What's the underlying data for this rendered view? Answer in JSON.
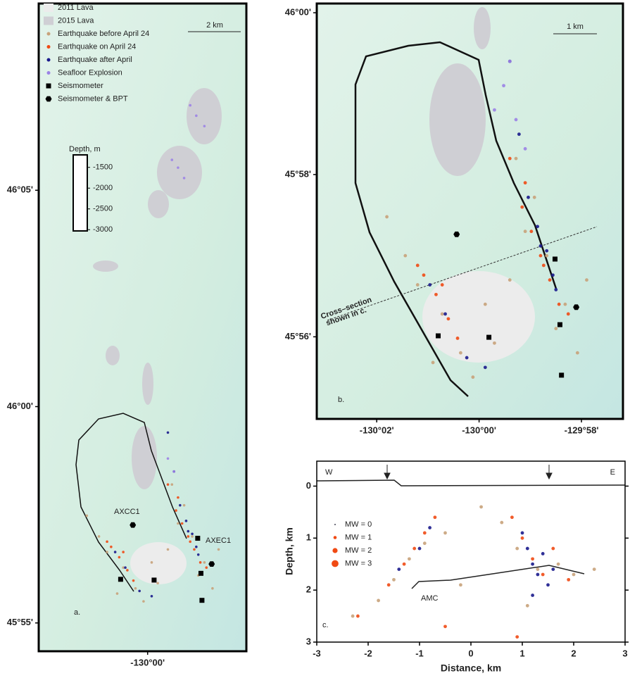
{
  "chart_data": [
    {
      "type": "map",
      "xlim": [
        -130.0537,
        -129.9513
      ],
      "ylim": [
        45.9058,
        46.1552
      ],
      "xticks": [
        {
          "value": -130,
          "label": "-130°00'"
        }
      ],
      "yticks": [
        {
          "value": 46.0833,
          "label": "46°05'"
        },
        {
          "value": 46,
          "label": "46°00'"
        },
        {
          "value": 45.9167,
          "label": "45°55'"
        }
      ],
      "legend": [
        {
          "label": "2011 Lava",
          "color": "#ececec",
          "marker": "patch"
        },
        {
          "label": "2015 Lava",
          "color": "#cfcfd4",
          "marker": "patch"
        },
        {
          "label": "Earthquake before April 24",
          "color": "#c8a27a",
          "marker": "circle"
        },
        {
          "label": "Earthquake on April 24",
          "color": "#f04a14",
          "marker": "circle"
        },
        {
          "label": "Earthquake after April",
          "color": "#1a1a8c",
          "marker": "circle"
        },
        {
          "label": "Seafloor Explosion",
          "color": "#9b82e6",
          "marker": "circle"
        },
        {
          "label": "Seismometer",
          "color": "#000000",
          "marker": "square"
        },
        {
          "label": "Seismometer & BPT",
          "color": "#000000",
          "marker": "hexagon"
        }
      ],
      "scale_label": "2 km",
      "depth_title": "Depth, m",
      "depth_lim": [
        -1200,
        -3030
      ],
      "depth_ticks": [
        -1500,
        -2000,
        -2500,
        -3000
      ],
      "station_labels": [
        "AXCC1",
        "AXEC1"
      ],
      "panel_label": "a.",
      "series": [
        {
          "color": "#c8a27a",
          "marker": "circle",
          "x": [
            -130.02,
            -130.012,
            -130.006,
            -129.998,
            -129.99,
            -129.985,
            -129.978,
            -129.972,
            -129.968,
            -130.024,
            -130.015,
            -129.995,
            -129.982,
            -129.975,
            -130.03,
            -129.965,
            -130.002,
            -129.988
          ],
          "values": [
            45.944,
            45.938,
            45.93,
            45.94,
            45.945,
            45.955,
            45.95,
            45.94,
            45.93,
            45.95,
            45.928,
            45.932,
            45.962,
            45.935,
            45.958,
            45.945,
            45.925,
            45.97
          ]
        },
        {
          "color": "#f04a14",
          "marker": "circle",
          "x": [
            -130.018,
            -130.014,
            -130.01,
            -130.007,
            -130.02,
            -129.986,
            -129.983,
            -129.98,
            -129.977,
            -129.974,
            -129.979,
            -129.985,
            -129.971,
            -130.012,
            -129.99
          ],
          "values": [
            45.946,
            45.942,
            45.937,
            45.933,
            45.948,
            45.96,
            45.955,
            45.95,
            45.945,
            45.94,
            45.948,
            45.965,
            45.938,
            45.944,
            45.97
          ]
        },
        {
          "color": "#1a1a8c",
          "marker": "circle",
          "x": [
            -129.984,
            -129.981,
            -129.978,
            -129.976,
            -129.98,
            -129.987,
            -130.016,
            -130.011,
            -130.004,
            -129.998,
            -129.99,
            -129.975
          ],
          "values": [
            45.962,
            45.956,
            45.951,
            45.946,
            45.952,
            45.975,
            45.944,
            45.938,
            45.929,
            45.927,
            45.99,
            45.943
          ]
        },
        {
          "color": "#9b82e6",
          "marker": "circle",
          "x": [
            -129.976,
            -129.972,
            -129.979,
            -129.985,
            -129.982,
            -129.988,
            -129.99,
            -129.987
          ],
          "values": [
            46.112,
            46.108,
            46.116,
            46.092,
            46.088,
            46.095,
            45.98,
            45.975
          ]
        },
        {
          "color": "#000000",
          "marker": "square",
          "x": [
            -130.0133,
            -129.9968,
            -129.9753,
            -129.9737,
            -129.9732
          ],
          "values": [
            45.9335,
            45.9332,
            45.9493,
            45.9358,
            45.9254
          ]
        },
        {
          "color": "#000000",
          "marker": "hexagon",
          "x": [
            -130.0073,
            -129.9684
          ],
          "values": [
            45.9544,
            45.9394
          ]
        }
      ]
    },
    {
      "type": "map",
      "xlim": [
        -130.0528,
        -129.9532
      ],
      "ylim": [
        45.9164,
        46.0019
      ],
      "xticks": [
        {
          "value": -130.0333,
          "label": "-130°02'"
        },
        {
          "value": -130,
          "label": "-130°00'"
        },
        {
          "value": -129.9667,
          "label": "-129°58'"
        }
      ],
      "yticks": [
        {
          "value": 46,
          "label": "46°00'"
        },
        {
          "value": 45.9667,
          "label": "45°58'"
        },
        {
          "value": 45.9333,
          "label": "45°56'"
        }
      ],
      "scale_label": "1 km",
      "panel_label": "b.",
      "cross_section_label": [
        "Cross–section",
        "shown in c."
      ],
      "series": [
        {
          "color": "#c8a27a",
          "marker": "circle",
          "x": [
            -130.02,
            -130.012,
            -130.006,
            -129.998,
            -129.99,
            -129.985,
            -129.978,
            -129.972,
            -129.968,
            -130.024,
            -130.015,
            -129.995,
            -129.982,
            -129.975,
            -130.03,
            -129.965,
            -130.002,
            -129.988
          ],
          "values": [
            45.944,
            45.938,
            45.93,
            45.94,
            45.945,
            45.955,
            45.95,
            45.94,
            45.93,
            45.95,
            45.928,
            45.932,
            45.962,
            45.935,
            45.958,
            45.945,
            45.925,
            45.97
          ]
        },
        {
          "color": "#f04a14",
          "marker": "circle",
          "x": [
            -130.018,
            -130.014,
            -130.01,
            -130.007,
            -130.02,
            -129.986,
            -129.983,
            -129.98,
            -129.977,
            -129.974,
            -129.979,
            -129.985,
            -129.971,
            -130.012,
            -129.99
          ],
          "values": [
            45.946,
            45.942,
            45.937,
            45.933,
            45.948,
            45.96,
            45.955,
            45.95,
            45.945,
            45.94,
            45.948,
            45.965,
            45.938,
            45.944,
            45.97
          ]
        },
        {
          "color": "#1a1a8c",
          "marker": "circle",
          "x": [
            -129.984,
            -129.981,
            -129.978,
            -129.976,
            -129.98,
            -129.987,
            -130.016,
            -130.011,
            -130.004,
            -129.998,
            -129.99,
            -129.975
          ],
          "values": [
            45.962,
            45.956,
            45.951,
            45.946,
            45.952,
            45.975,
            45.944,
            45.938,
            45.929,
            45.927,
            45.99,
            45.943
          ]
        },
        {
          "color": "#9b82e6",
          "marker": "circle",
          "x": [
            -129.992,
            -129.988,
            -129.985,
            -129.99,
            -129.995
          ],
          "values": [
            45.985,
            45.978,
            45.972,
            45.99,
            45.98
          ]
        },
        {
          "color": "#000000",
          "marker": "square",
          "x": [
            -130.0133,
            -129.9968,
            -129.9753,
            -129.9737,
            -129.9732
          ],
          "values": [
            45.9335,
            45.9332,
            45.9493,
            45.9358,
            45.9254
          ]
        },
        {
          "color": "#000000",
          "marker": "hexagon",
          "x": [
            -130.0073,
            -129.9684
          ],
          "values": [
            45.9544,
            45.9394
          ]
        }
      ]
    },
    {
      "type": "scatter",
      "x_label": "Distance, km",
      "y_label": "Depth, km",
      "xlim": [
        -3,
        3
      ],
      "ylim": [
        3,
        -0.48
      ],
      "xticks": [
        -3,
        -2,
        -1,
        0,
        1,
        2,
        3
      ],
      "yticks": [
        0,
        1,
        2,
        3
      ],
      "west_label": "W",
      "east_label": "E",
      "amc_label": "AMC",
      "panel_label": "c.",
      "size_legend": [
        "MW = 0",
        "MW = 1",
        "MW = 2",
        "MW = 3"
      ],
      "series": [
        {
          "color": "#c8a27a",
          "x": [
            -1.8,
            -1.5,
            -1.2,
            -0.9,
            -0.5,
            0.2,
            0.6,
            0.9,
            1.3,
            1.7,
            2.0,
            2.4,
            -2.3,
            1.1,
            -0.2
          ],
          "values": [
            2.2,
            1.8,
            1.4,
            1.1,
            0.9,
            0.4,
            0.7,
            1.2,
            1.6,
            1.5,
            1.7,
            1.6,
            2.5,
            2.3,
            1.9
          ]
        },
        {
          "color": "#f04a14",
          "x": [
            -1.6,
            -1.3,
            -1.1,
            -0.9,
            -0.7,
            0.8,
            1.0,
            1.2,
            1.4,
            1.6,
            1.9,
            -2.2,
            -0.5,
            0.9
          ],
          "values": [
            1.9,
            1.5,
            1.2,
            0.9,
            0.6,
            0.6,
            1.0,
            1.4,
            1.7,
            1.2,
            1.8,
            2.5,
            2.7,
            2.9
          ]
        },
        {
          "color": "#1a1a8c",
          "x": [
            -1.4,
            -1.0,
            -0.8,
            1.0,
            1.1,
            1.2,
            1.3,
            1.4,
            1.6,
            1.5,
            1.2
          ],
          "values": [
            1.6,
            1.2,
            0.8,
            0.9,
            1.2,
            1.5,
            1.7,
            1.3,
            1.6,
            1.9,
            2.1
          ]
        }
      ]
    }
  ]
}
